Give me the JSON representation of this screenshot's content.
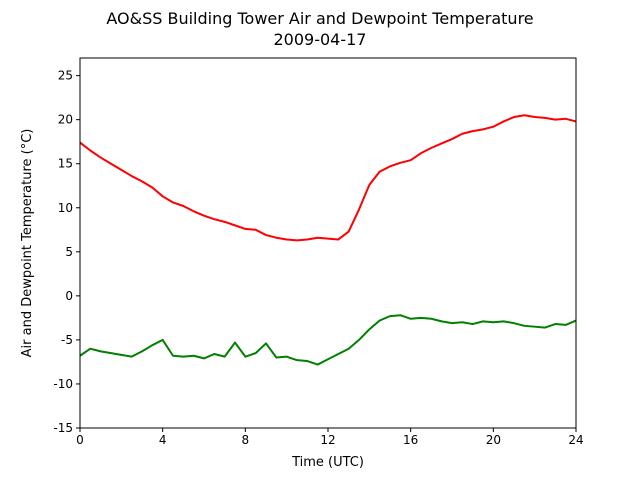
{
  "chart_data": {
    "type": "line",
    "title": "AO&SS Building Tower Air and Dewpoint Temperature",
    "subtitle": "2009-04-17",
    "xlabel": "Time (UTC)",
    "ylabel": "Air and Dewpoint Temperature (°C)",
    "xlim": [
      0,
      24
    ],
    "ylim": [
      -15,
      27
    ],
    "xticks": [
      0,
      4,
      8,
      12,
      16,
      20,
      24
    ],
    "yticks": [
      -15,
      -10,
      -5,
      0,
      5,
      10,
      15,
      20,
      25
    ],
    "grid": false,
    "legend": "none",
    "series": [
      {
        "color": "#ff0000",
        "x": [
          0,
          0.5,
          1,
          1.5,
          2,
          2.5,
          3,
          3.5,
          4,
          4.5,
          5,
          5.5,
          6,
          6.5,
          7,
          7.5,
          8,
          8.5,
          9,
          9.5,
          10,
          10.5,
          11,
          11.5,
          12,
          12.5,
          13,
          13.5,
          14,
          14.5,
          15,
          15.5,
          16,
          16.5,
          17,
          17.5,
          18,
          18.5,
          19,
          19.5,
          20,
          20.5,
          21,
          21.5,
          22,
          22.5,
          23,
          23.5,
          24
        ],
        "y": [
          17.4,
          16.5,
          15.7,
          15.0,
          14.3,
          13.6,
          13.0,
          12.3,
          11.3,
          10.6,
          10.2,
          9.6,
          9.1,
          8.7,
          8.4,
          8.0,
          7.6,
          7.5,
          6.9,
          6.6,
          6.4,
          6.3,
          6.4,
          6.6,
          6.5,
          6.4,
          7.3,
          9.8,
          12.6,
          14.1,
          14.7,
          15.1,
          15.4,
          16.2,
          16.8,
          17.3,
          17.8,
          18.4,
          18.7,
          18.9,
          19.2,
          19.8,
          20.3,
          20.5,
          20.3,
          20.2,
          20.0,
          20.1,
          19.8
        ]
      },
      {
        "color": "#008000",
        "x": [
          0,
          0.5,
          1,
          1.5,
          2,
          2.5,
          3,
          3.5,
          4,
          4.5,
          5,
          5.5,
          6,
          6.5,
          7,
          7.5,
          8,
          8.5,
          9,
          9.5,
          10,
          10.5,
          11,
          11.5,
          12,
          12.5,
          13,
          13.5,
          14,
          14.5,
          15,
          15.5,
          16,
          16.5,
          17,
          17.5,
          18,
          18.5,
          19,
          19.5,
          20,
          20.5,
          21,
          21.5,
          22,
          22.5,
          23,
          23.5,
          24
        ],
        "y": [
          -6.8,
          -6.0,
          -6.3,
          -6.5,
          -6.7,
          -6.9,
          -6.3,
          -5.6,
          -5.0,
          -6.8,
          -6.9,
          -6.8,
          -7.1,
          -6.6,
          -6.9,
          -5.3,
          -6.9,
          -6.5,
          -5.4,
          -7.0,
          -6.9,
          -7.3,
          -7.4,
          -7.8,
          -7.2,
          -6.6,
          -6.0,
          -5.0,
          -3.8,
          -2.8,
          -2.3,
          -2.2,
          -2.6,
          -2.5,
          -2.6,
          -2.9,
          -3.1,
          -3.0,
          -3.2,
          -2.9,
          -3.0,
          -2.9,
          -3.1,
          -3.4,
          -3.5,
          -3.6,
          -3.2,
          -3.3,
          -2.8
        ]
      }
    ]
  }
}
